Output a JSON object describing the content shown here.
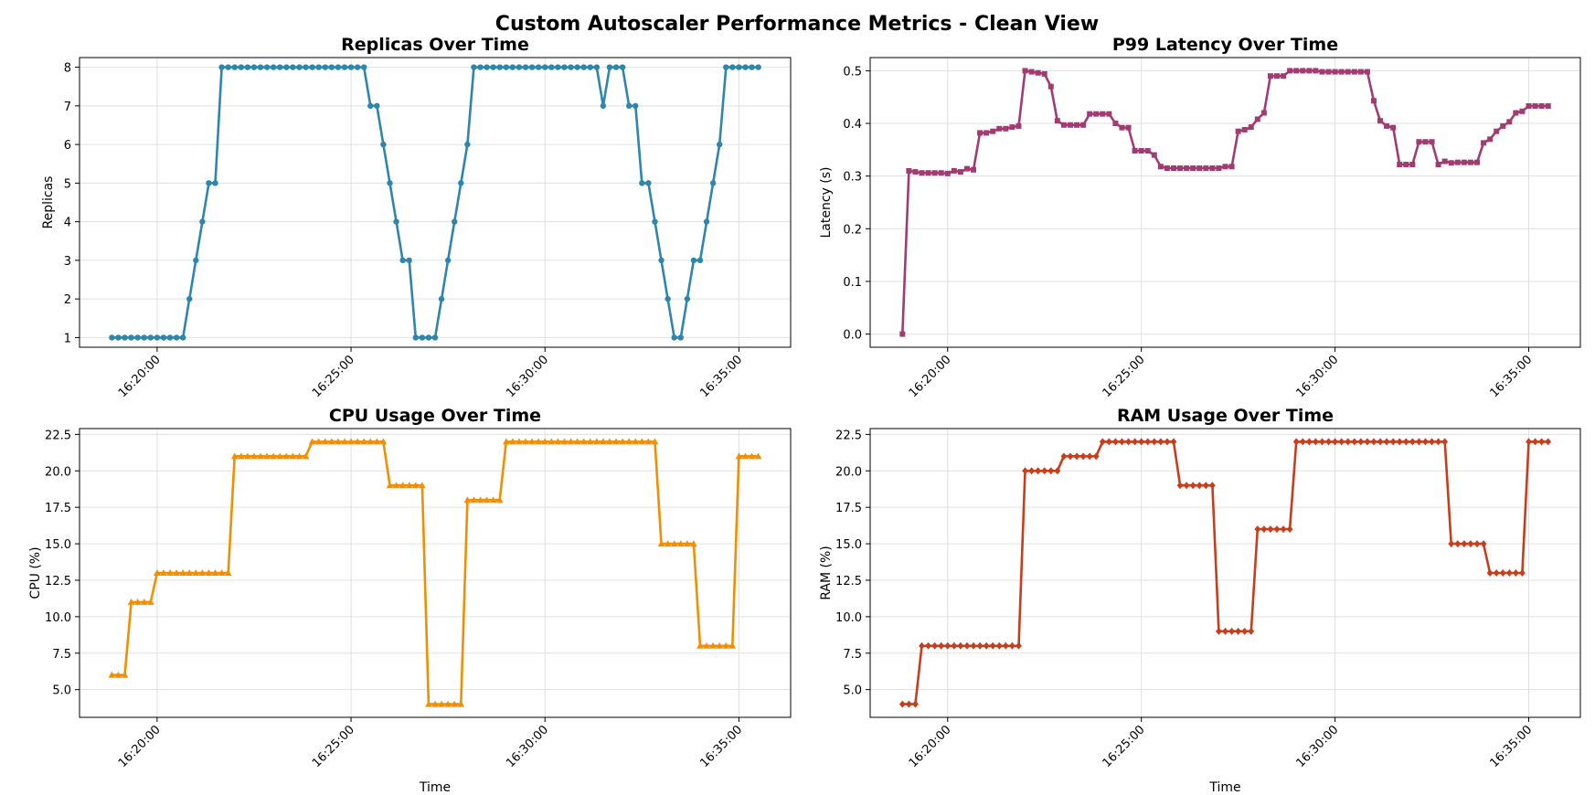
{
  "figure": {
    "suptitle": "Custom Autoscaler Performance Metrics - Clean View"
  },
  "chart_data": [
    {
      "type": "line",
      "title": "Replicas Over Time",
      "xlabel": "",
      "ylabel": "Replicas",
      "color": "#2e86ab",
      "marker": "circle",
      "grid": true,
      "x_range": [
        "16:18:50",
        "16:35:30"
      ],
      "xticks": [
        "16:20:00",
        "16:25:00",
        "16:30:00",
        "16:35:00"
      ],
      "yticks": [
        "1",
        "2",
        "3",
        "4",
        "5",
        "6",
        "7",
        "8"
      ],
      "ylim": [
        0.75,
        8.25
      ],
      "steps": [
        [
          "16:18:50",
          1
        ],
        [
          "16:20:45",
          2
        ],
        [
          "16:20:55",
          2
        ],
        [
          "16:21:00",
          3
        ],
        [
          "16:21:05",
          4
        ],
        [
          "16:21:15",
          4
        ],
        [
          "16:21:20",
          5
        ],
        [
          "16:21:30",
          5
        ],
        [
          "16:21:35",
          6
        ],
        [
          "16:21:40",
          8
        ],
        [
          "16:25:25",
          8
        ],
        [
          "16:25:30",
          7
        ],
        [
          "16:25:40",
          7
        ],
        [
          "16:25:45",
          6
        ],
        [
          "16:25:55",
          6
        ],
        [
          "16:26:00",
          5
        ],
        [
          "16:26:05",
          4
        ],
        [
          "16:26:15",
          4
        ],
        [
          "16:26:20",
          3
        ],
        [
          "16:26:30",
          3
        ],
        [
          "16:26:35",
          2
        ],
        [
          "16:26:40",
          1
        ],
        [
          "16:27:10",
          1
        ],
        [
          "16:27:15",
          2
        ],
        [
          "16:27:25",
          2
        ],
        [
          "16:27:30",
          3
        ],
        [
          "16:27:35",
          4
        ],
        [
          "16:27:45",
          4
        ],
        [
          "16:27:50",
          5
        ],
        [
          "16:27:55",
          6
        ],
        [
          "16:28:05",
          6
        ],
        [
          "16:28:10",
          8
        ],
        [
          "16:31:20",
          8
        ],
        [
          "16:31:25",
          7
        ],
        [
          "16:31:35",
          7
        ],
        [
          "16:31:40",
          8
        ],
        [
          "16:32:05",
          8
        ],
        [
          "16:32:10",
          7
        ],
        [
          "16:32:20",
          7
        ],
        [
          "16:32:25",
          6
        ],
        [
          "16:32:30",
          5
        ],
        [
          "16:32:40",
          5
        ],
        [
          "16:32:45",
          4
        ],
        [
          "16:32:55",
          4
        ],
        [
          "16:33:00",
          3
        ],
        [
          "16:33:05",
          2
        ],
        [
          "16:33:15",
          2
        ],
        [
          "16:33:20",
          1
        ],
        [
          "16:33:30",
          1
        ],
        [
          "16:33:35",
          2
        ],
        [
          "16:33:45",
          2
        ],
        [
          "16:33:50",
          3
        ],
        [
          "16:34:00",
          3
        ],
        [
          "16:34:05",
          4
        ],
        [
          "16:34:15",
          4
        ],
        [
          "16:34:20",
          5
        ],
        [
          "16:34:25",
          6
        ],
        [
          "16:34:35",
          6
        ],
        [
          "16:34:40",
          8
        ],
        [
          "16:35:30",
          8
        ]
      ]
    },
    {
      "type": "line",
      "title": "P99 Latency Over Time",
      "xlabel": "",
      "ylabel": "Latency (s)",
      "color": "#a23b72",
      "marker": "square",
      "grid": true,
      "x_range": [
        "16:18:50",
        "16:35:30"
      ],
      "xticks": [
        "16:20:00",
        "16:25:00",
        "16:30:00",
        "16:35:00"
      ],
      "yticks": [
        "0.0",
        "0.1",
        "0.2",
        "0.3",
        "0.4",
        "0.5"
      ],
      "ylim": [
        -0.025,
        0.525
      ],
      "steps": [
        [
          "16:18:50",
          0.0
        ],
        [
          "16:19:00",
          0.31
        ],
        [
          "16:19:10",
          0.308
        ],
        [
          "16:19:20",
          0.306
        ],
        [
          "16:20:00",
          0.305
        ],
        [
          "16:20:10",
          0.31
        ],
        [
          "16:20:20",
          0.308
        ],
        [
          "16:20:25",
          0.314
        ],
        [
          "16:20:35",
          0.312
        ],
        [
          "16:20:45",
          0.31
        ],
        [
          "16:20:50",
          0.382
        ],
        [
          "16:21:05",
          0.385
        ],
        [
          "16:21:20",
          0.39
        ],
        [
          "16:21:35",
          0.393
        ],
        [
          "16:21:50",
          0.395
        ],
        [
          "16:22:00",
          0.5
        ],
        [
          "16:22:10",
          0.498
        ],
        [
          "16:22:20",
          0.496
        ],
        [
          "16:22:30",
          0.494
        ],
        [
          "16:22:35",
          0.47
        ],
        [
          "16:22:45",
          0.44
        ],
        [
          "16:22:50",
          0.405
        ],
        [
          "16:23:00",
          0.397
        ],
        [
          "16:23:35",
          0.397
        ],
        [
          "16:23:40",
          0.418
        ],
        [
          "16:24:10",
          0.418
        ],
        [
          "16:24:15",
          0.4
        ],
        [
          "16:24:25",
          0.392
        ],
        [
          "16:24:45",
          0.39
        ],
        [
          "16:24:50",
          0.348
        ],
        [
          "16:25:10",
          0.348
        ],
        [
          "16:25:15",
          0.34
        ],
        [
          "16:25:25",
          0.33
        ],
        [
          "16:25:30",
          0.318
        ],
        [
          "16:25:40",
          0.315
        ],
        [
          "16:27:00",
          0.315
        ],
        [
          "16:27:05",
          0.318
        ],
        [
          "16:27:20",
          0.318
        ],
        [
          "16:27:25",
          0.385
        ],
        [
          "16:27:35",
          0.388
        ],
        [
          "16:27:45",
          0.393
        ],
        [
          "16:27:55",
          0.4
        ],
        [
          "16:28:00",
          0.408
        ],
        [
          "16:28:10",
          0.42
        ],
        [
          "16:28:15",
          0.432
        ],
        [
          "16:28:20",
          0.49
        ],
        [
          "16:28:40",
          0.49
        ],
        [
          "16:28:45",
          0.5
        ],
        [
          "16:29:30",
          0.5
        ],
        [
          "16:29:40",
          0.498
        ],
        [
          "16:30:50",
          0.498
        ],
        [
          "16:30:55",
          0.49
        ],
        [
          "16:31:00",
          0.443
        ],
        [
          "16:31:05",
          0.405
        ],
        [
          "16:31:15",
          0.395
        ],
        [
          "16:31:25",
          0.392
        ],
        [
          "16:31:35",
          0.388
        ],
        [
          "16:31:40",
          0.322
        ],
        [
          "16:31:45",
          0.365
        ],
        [
          "16:31:50",
          0.322
        ],
        [
          "16:32:00",
          0.322
        ],
        [
          "16:32:05",
          0.325
        ],
        [
          "16:32:10",
          0.365
        ],
        [
          "16:32:35",
          0.365
        ],
        [
          "16:32:40",
          0.322
        ],
        [
          "16:32:45",
          0.328
        ],
        [
          "16:33:00",
          0.325
        ],
        [
          "16:33:10",
          0.326
        ],
        [
          "16:33:45",
          0.326
        ],
        [
          "16:33:50",
          0.363
        ],
        [
          "16:33:55",
          0.385
        ],
        [
          "16:34:00",
          0.37
        ],
        [
          "16:34:05",
          0.385
        ],
        [
          "16:34:15",
          0.395
        ],
        [
          "16:34:25",
          0.403
        ],
        [
          "16:34:35",
          0.408
        ],
        [
          "16:34:40",
          0.42
        ],
        [
          "16:34:50",
          0.423
        ],
        [
          "16:34:55",
          0.433
        ],
        [
          "16:35:30",
          0.433
        ]
      ]
    },
    {
      "type": "line",
      "title": "CPU Usage Over Time",
      "xlabel": "Time",
      "ylabel": "CPU (%)",
      "color": "#f18f01",
      "marker": "triangle",
      "grid": true,
      "x_range": [
        "16:18:50",
        "16:35:30"
      ],
      "xticks": [
        "16:20:00",
        "16:25:00",
        "16:30:00",
        "16:35:00"
      ],
      "yticks": [
        "5.0",
        "7.5",
        "10.0",
        "12.5",
        "15.0",
        "17.5",
        "20.0",
        "22.5"
      ],
      "ylim": [
        3.1,
        22.9
      ],
      "steps": [
        [
          "16:18:50",
          6
        ],
        [
          "16:19:10",
          6
        ],
        [
          "16:19:15",
          11
        ],
        [
          "16:19:55",
          11
        ],
        [
          "16:20:00",
          13
        ],
        [
          "16:21:50",
          13
        ],
        [
          "16:21:55",
          21
        ],
        [
          "16:23:55",
          21
        ],
        [
          "16:24:00",
          22
        ],
        [
          "16:25:50",
          22
        ],
        [
          "16:25:55",
          19
        ],
        [
          "16:26:50",
          19
        ],
        [
          "16:26:55",
          4
        ],
        [
          "16:27:50",
          4
        ],
        [
          "16:27:55",
          18
        ],
        [
          "16:28:50",
          18
        ],
        [
          "16:28:55",
          22
        ],
        [
          "16:32:50",
          22
        ],
        [
          "16:32:55",
          15
        ],
        [
          "16:33:50",
          15
        ],
        [
          "16:33:55",
          8
        ],
        [
          "16:34:50",
          8
        ],
        [
          "16:34:55",
          21
        ],
        [
          "16:35:30",
          21
        ]
      ]
    },
    {
      "type": "line",
      "title": "RAM Usage Over Time",
      "xlabel": "Time",
      "ylabel": "RAM (%)",
      "color": "#c73e1d",
      "marker": "diamond",
      "grid": true,
      "x_range": [
        "16:18:50",
        "16:35:30"
      ],
      "xticks": [
        "16:20:00",
        "16:25:00",
        "16:30:00",
        "16:35:00"
      ],
      "yticks": [
        "5.0",
        "7.5",
        "10.0",
        "12.5",
        "15.0",
        "17.5",
        "20.0",
        "22.5"
      ],
      "ylim": [
        3.1,
        22.9
      ],
      "steps": [
        [
          "16:18:50",
          4
        ],
        [
          "16:19:10",
          4
        ],
        [
          "16:19:15",
          8
        ],
        [
          "16:21:50",
          8
        ],
        [
          "16:21:55",
          20
        ],
        [
          "16:22:50",
          20
        ],
        [
          "16:22:55",
          21
        ],
        [
          "16:23:50",
          21
        ],
        [
          "16:23:55",
          22
        ],
        [
          "16:25:50",
          22
        ],
        [
          "16:25:55",
          19
        ],
        [
          "16:26:50",
          19
        ],
        [
          "16:26:55",
          9
        ],
        [
          "16:27:50",
          9
        ],
        [
          "16:27:55",
          16
        ],
        [
          "16:28:50",
          16
        ],
        [
          "16:28:55",
          22
        ],
        [
          "16:32:50",
          22
        ],
        [
          "16:32:55",
          15
        ],
        [
          "16:33:50",
          15
        ],
        [
          "16:33:55",
          13
        ],
        [
          "16:34:50",
          13
        ],
        [
          "16:34:55",
          22
        ],
        [
          "16:35:30",
          22
        ]
      ]
    }
  ]
}
